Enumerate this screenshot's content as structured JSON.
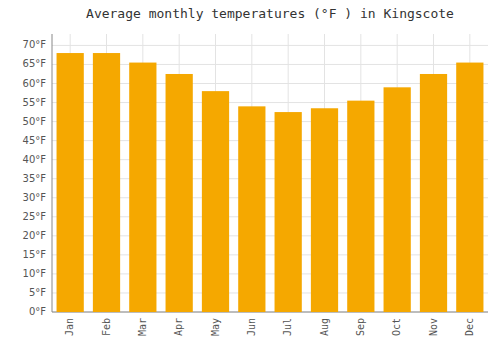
{
  "chart_data": {
    "type": "bar",
    "title": "Average monthly temperatures (°F ) in Kingscote",
    "categories": [
      "Jan",
      "Feb",
      "Mar",
      "Apr",
      "May",
      "Jun",
      "Jul",
      "Aug",
      "Sep",
      "Oct",
      "Nov",
      "Dec"
    ],
    "values": [
      68,
      68,
      65.5,
      62.5,
      58,
      54,
      52.5,
      53.5,
      55.5,
      59,
      62.5,
      65.5
    ],
    "color": "#F5A800",
    "ylim": [
      0,
      73
    ],
    "yticks": [
      {
        "value": 0,
        "label": "0°F"
      },
      {
        "value": 5,
        "label": "5°F"
      },
      {
        "value": 10,
        "label": "10°F"
      },
      {
        "value": 15,
        "label": "15°F"
      },
      {
        "value": 20,
        "label": "20°F"
      },
      {
        "value": 25,
        "label": "25°F"
      },
      {
        "value": 30,
        "label": "30°F"
      },
      {
        "value": 35,
        "label": "35°F"
      },
      {
        "value": 40,
        "label": "40°F"
      },
      {
        "value": 45,
        "label": "45°F"
      },
      {
        "value": 50,
        "label": "50°F"
      },
      {
        "value": 55,
        "label": "55°F"
      },
      {
        "value": 60,
        "label": "60°F"
      },
      {
        "value": 65,
        "label": "65°F"
      },
      {
        "value": 70,
        "label": "70°F"
      }
    ],
    "grid": true
  }
}
